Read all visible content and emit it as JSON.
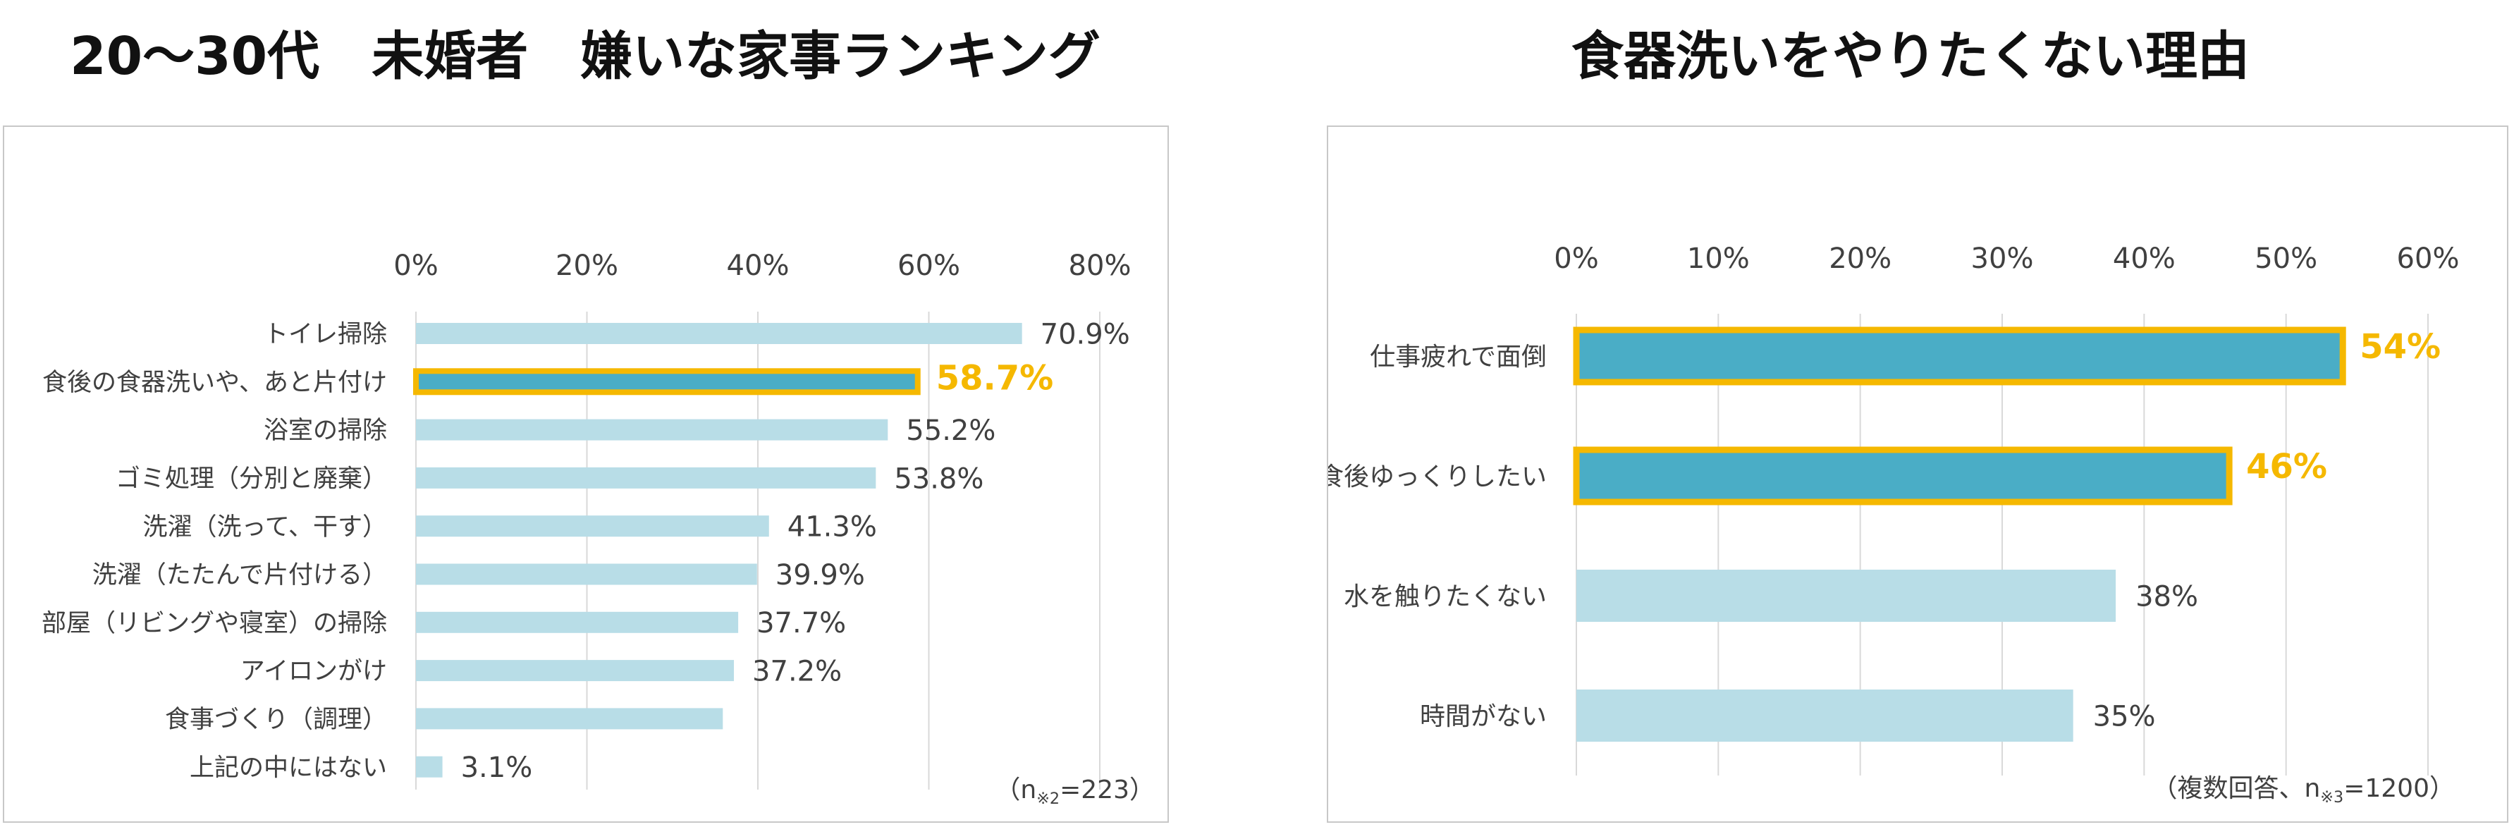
{
  "left_title": "20〜30代　未婚者　嫌いな家事ランキング",
  "right_title": "食器洗いをやりたくない理由",
  "colors": {
    "light_bar": "#b8dde7",
    "dark_bar": "#4aadc6",
    "highlight": "#f5b800",
    "grid": "#d9d9d9",
    "text": "#404040"
  },
  "chart_data": [
    {
      "type": "bar",
      "orientation": "horizontal",
      "title": "20〜30代　未婚者　嫌いな家事ランキング",
      "categories": [
        "トイレ掃除",
        "食後の食器洗いや、あと片付け",
        "浴室の掃除",
        "ゴミ処理（分別と廃棄）",
        "洗濯（洗って、干す）",
        "洗濯（たたんで片付ける）",
        "部屋（リビングや寝室）の掃除",
        "アイロンがけ",
        "食事づくり（調理）",
        "上記の中にはない"
      ],
      "values": [
        70.9,
        58.7,
        55.2,
        53.8,
        41.3,
        39.9,
        37.7,
        37.2,
        null,
        3.1
      ],
      "value_labels": [
        "70.9%",
        "58.7%",
        "55.2%",
        "53.8%",
        "41.3%",
        "39.9%",
        "37.7%",
        "37.2%",
        "",
        "3.1%"
      ],
      "bar_values": [
        70.9,
        58.7,
        55.2,
        53.8,
        41.3,
        39.9,
        37.7,
        37.2,
        35.9,
        3.1
      ],
      "highlighted": [
        1
      ],
      "xlim": [
        0,
        80
      ],
      "ticks": [
        0,
        20,
        40,
        60,
        80
      ],
      "tick_labels": [
        "0%",
        "20%",
        "40%",
        "60%",
        "80%"
      ],
      "note": "（n※2=223）",
      "note_parts": [
        "（n",
        "※2",
        "=223）"
      ]
    },
    {
      "type": "bar",
      "orientation": "horizontal",
      "title": "食器洗いをやりたくない理由",
      "categories": [
        "仕事疲れで面倒",
        "食後ゆっくりしたい",
        "水を触りたくない",
        "時間がない"
      ],
      "values": [
        54,
        46,
        38,
        35
      ],
      "value_labels": [
        "54%",
        "46%",
        "38%",
        "35%"
      ],
      "highlighted": [
        0,
        1
      ],
      "xlim": [
        0,
        60
      ],
      "ticks": [
        0,
        10,
        20,
        30,
        40,
        50,
        60
      ],
      "tick_labels": [
        "0%",
        "10%",
        "20%",
        "30%",
        "40%",
        "50%",
        "60%"
      ],
      "note": "（複数回答、n※3=1200）",
      "note_parts": [
        "（複数回答、n",
        "※3",
        "=1200）"
      ]
    }
  ]
}
